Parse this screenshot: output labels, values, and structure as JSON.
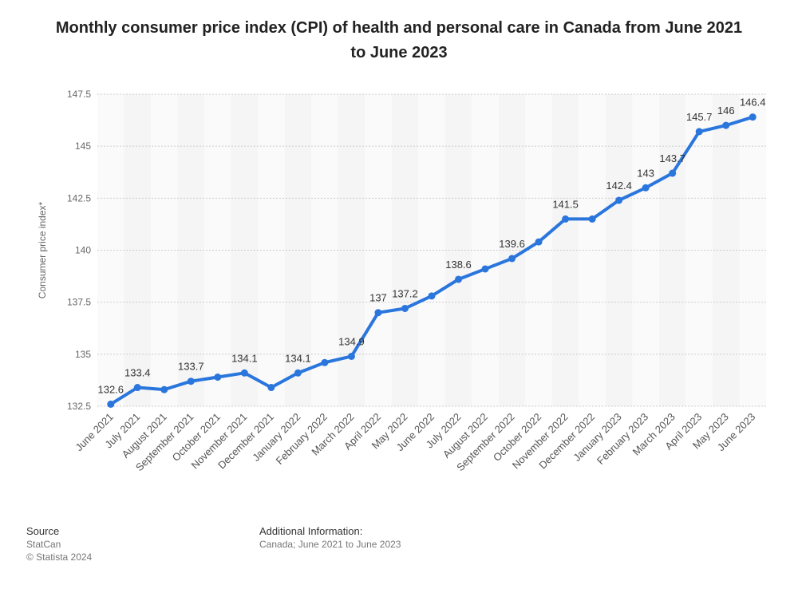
{
  "chart_data": {
    "type": "line",
    "title": "Monthly consumer price index (CPI) of health and personal care in Canada from June 2021 to June 2023",
    "y_label": "Consumer price index*",
    "categories": [
      "June 2021",
      "July 2021",
      "August 2021",
      "September 2021",
      "October 2021",
      "November 2021",
      "December 2021",
      "January 2022",
      "February 2022",
      "March 2022",
      "April 2022",
      "May 2022",
      "June 2022",
      "July 2022",
      "August 2022",
      "September 2022",
      "October 2022",
      "November 2022",
      "December 2022",
      "January 2023",
      "February 2023",
      "March 2023",
      "April 2023",
      "May 2023",
      "June 2023"
    ],
    "series": [
      {
        "name": "CPI",
        "color": "#2a76dd",
        "values": [
          132.6,
          133.4,
          133.3,
          133.7,
          133.9,
          134.1,
          133.4,
          134.1,
          134.6,
          134.9,
          137,
          137.2,
          137.8,
          138.6,
          139.1,
          139.6,
          140.4,
          141.5,
          141.5,
          142.4,
          143,
          143.7,
          145.7,
          146,
          146.4
        ],
        "value_labels": [
          "132.6",
          "133.4",
          null,
          "133.7",
          null,
          "134.1",
          null,
          "134.1",
          null,
          "134.9",
          "137",
          "137.2",
          null,
          "138.6",
          null,
          "139.6",
          null,
          "141.5",
          null,
          "142.4",
          "143",
          "143.7",
          "145.7",
          "146",
          "146.4"
        ]
      }
    ],
    "ylim": [
      132.5,
      147.5
    ],
    "yticks": [
      132.5,
      135,
      137.5,
      140,
      142.5,
      145,
      147.5
    ],
    "grid": true
  },
  "footer": {
    "source_heading": "Source",
    "source": "StatCan",
    "copyright": "© Statista 2024",
    "info_heading": "Additional Information:",
    "info": "Canada; June 2021 to June 2023"
  }
}
